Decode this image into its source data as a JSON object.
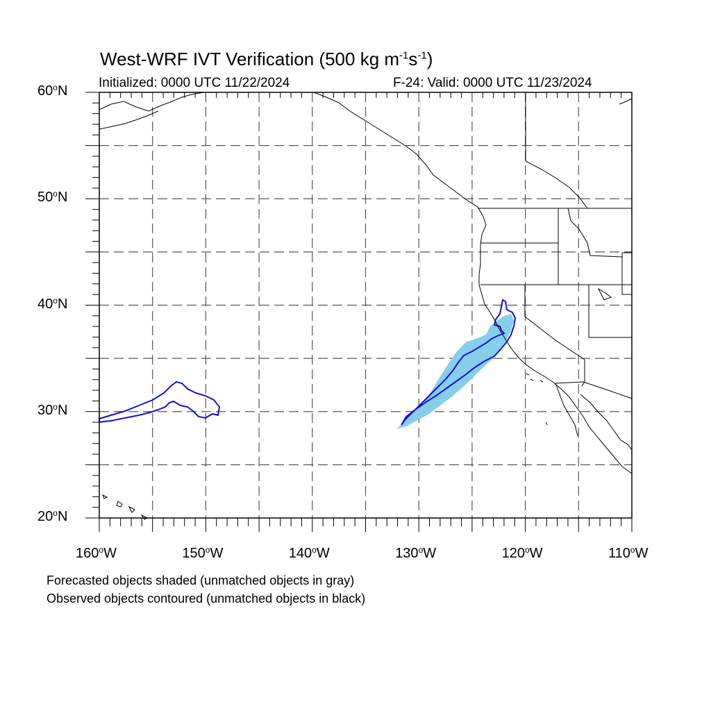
{
  "title": {
    "prefix": "West-WRF IVT Verification (500 kg m",
    "exp1": "-1",
    "mid": "s",
    "exp2": "-1",
    "suffix": ")"
  },
  "initialized": "Initialized: 0000 UTC 11/22/2024",
  "valid": "F-24: Valid: 0000 UTC 11/23/2024",
  "lat_labels": [
    {
      "text": "60",
      "suffix": "N",
      "value": 60
    },
    {
      "text": "50",
      "suffix": "N",
      "value": 50
    },
    {
      "text": "40",
      "suffix": "N",
      "value": 40
    },
    {
      "text": "30",
      "suffix": "N",
      "value": 30
    },
    {
      "text": "20",
      "suffix": "N",
      "value": 20
    }
  ],
  "lon_labels": [
    {
      "text": "160",
      "suffix": "W",
      "value": -160
    },
    {
      "text": "150",
      "suffix": "W",
      "value": -150
    },
    {
      "text": "140",
      "suffix": "W",
      "value": -140
    },
    {
      "text": "130",
      "suffix": "W",
      "value": -130
    },
    {
      "text": "120",
      "suffix": "W",
      "value": -120
    },
    {
      "text": "110",
      "suffix": "W",
      "value": -110
    }
  ],
  "notes": {
    "forecast": "Forecasted objects shaded (unmatched objects in gray)",
    "observed": "Observed objects contoured (unmatched objects in black)"
  },
  "map": {
    "lon_range": [
      -160,
      -110
    ],
    "lat_range": [
      20,
      60
    ],
    "grid_interval_deg": 5,
    "colors": {
      "forecast_fill": "#87ceeb",
      "observed_contour": "#1010e0",
      "coastline": "#000000",
      "grid": "#555555"
    }
  }
}
